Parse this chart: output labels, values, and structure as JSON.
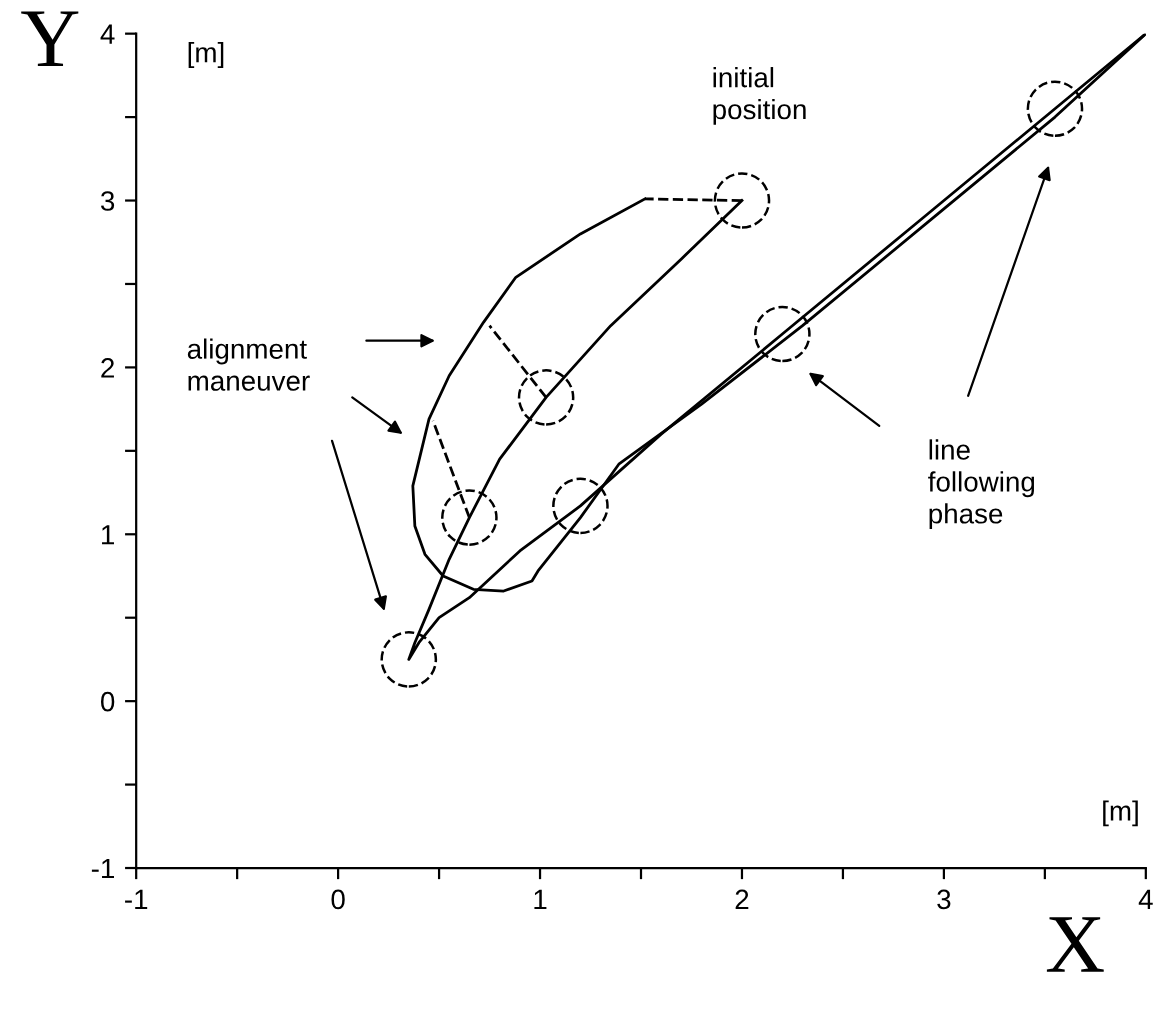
{
  "chart_data": {
    "type": "line",
    "xlabel": "X",
    "ylabel": "Y",
    "xlim": [
      -1,
      4
    ],
    "ylim": [
      -1,
      4
    ],
    "xticks": [
      -1,
      {
        "value": -0.5,
        "label": null
      },
      0,
      {
        "value": 0.5,
        "label": null
      },
      1,
      {
        "value": 1.5,
        "label": null
      },
      2,
      {
        "value": 2.5,
        "label": null
      },
      3,
      {
        "value": 3.5,
        "label": null
      },
      4
    ],
    "yticks": [
      -1,
      {
        "value": -0.5,
        "label": null
      },
      0,
      {
        "value": 0.5,
        "label": null
      },
      1,
      {
        "value": 1.5,
        "label": null
      },
      2,
      {
        "value": 2.5,
        "label": null
      },
      3,
      {
        "value": 3.5,
        "label": null
      },
      4
    ],
    "grid": false,
    "legend": false,
    "series": [
      {
        "color": "#000000",
        "line_style": "solid",
        "marker": "none",
        "x": [
          2.0,
          1.7,
          1.35,
          1.03,
          0.8,
          0.65,
          0.55,
          0.45,
          0.38,
          0.35,
          0.4,
          0.5,
          0.65,
          0.9,
          1.2,
          1.6,
          2.2,
          2.9,
          3.55,
          4.0
        ],
        "values": [
          3.0,
          2.65,
          2.25,
          1.82,
          1.45,
          1.1,
          0.85,
          0.55,
          0.35,
          0.25,
          0.35,
          0.5,
          0.62,
          0.9,
          1.17,
          1.6,
          2.2,
          2.9,
          3.55,
          4.0
        ]
      },
      {
        "color": "#000000",
        "line_style": "solid",
        "marker": "none",
        "x": [
          1.52,
          1.2,
          0.88,
          0.72,
          0.55,
          0.45,
          0.37,
          0.38,
          0.43,
          0.52,
          0.67,
          0.82,
          0.96,
          0.99,
          1.2,
          1.39,
          1.8,
          2.3,
          3.0,
          3.55,
          4.0
        ],
        "values": [
          3.01,
          2.8,
          2.54,
          2.27,
          1.95,
          1.69,
          1.29,
          1.05,
          0.88,
          0.75,
          0.67,
          0.66,
          0.72,
          0.78,
          1.1,
          1.42,
          1.78,
          2.25,
          2.95,
          3.5,
          4.0
        ]
      },
      {
        "type": "scatter",
        "color": "#000000",
        "marker": "circle",
        "line_style": "dashed",
        "x": [
          2.0,
          1.03,
          0.65,
          0.35,
          1.2,
          2.2,
          3.55
        ],
        "values": [
          3.0,
          1.82,
          1.1,
          0.25,
          1.17,
          2.2,
          3.55
        ]
      },
      {
        "color": "#000000",
        "line_style": "dashed",
        "marker": "none",
        "x": [
          2.0,
          1.52,
          null,
          1.03,
          0.75,
          null,
          0.65,
          0.47
        ],
        "values": [
          3.0,
          3.01,
          null,
          1.82,
          2.25,
          null,
          1.1,
          1.68
        ]
      }
    ],
    "annotations": [
      "[m]",
      "[m]",
      "initial position",
      "alignment maneuver",
      "line following phase"
    ]
  }
}
